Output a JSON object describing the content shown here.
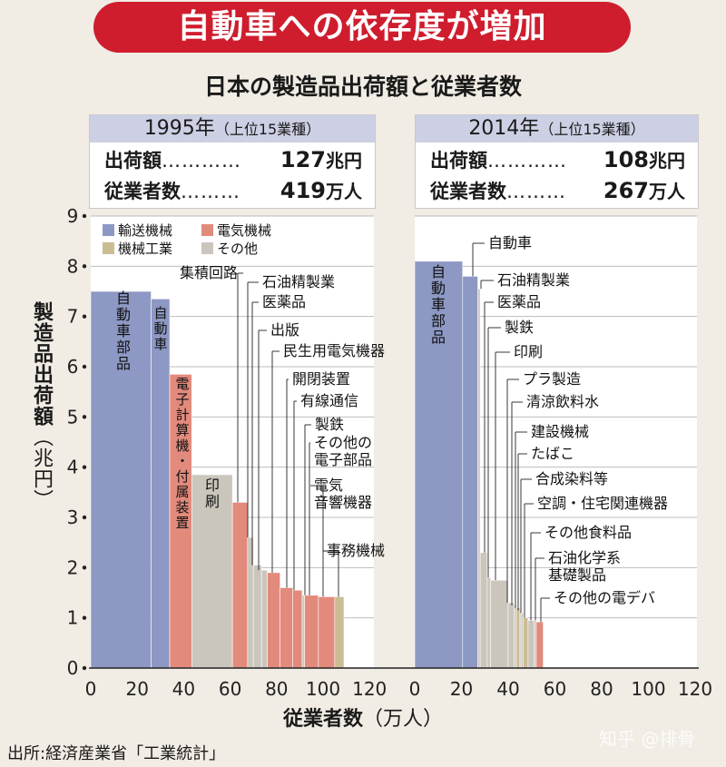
{
  "header": {
    "banner": "自動車への依存度が増加",
    "subtitle": "日本の製造品出荷額と従業者数"
  },
  "summary": [
    {
      "year": "1995年",
      "note": "（上位15業種）",
      "shipment_label": "出荷額",
      "shipment_value": "127",
      "shipment_unit": "兆円",
      "employee_label": "従業者数",
      "employee_value": "419",
      "employee_unit": "万人"
    },
    {
      "year": "2014年",
      "note": "（上位15業種）",
      "shipment_label": "出荷額",
      "shipment_value": "108",
      "shipment_unit": "兆円",
      "employee_label": "従業者数",
      "employee_value": "267",
      "employee_unit": "万人"
    }
  ],
  "axes": {
    "ylabel": "製造品出荷額",
    "ylabel_unit": "（兆円）",
    "xlabel": "従業者数",
    "xlabel_unit": "（万人）"
  },
  "footer": {
    "source": "出所:経済産業省「工業統計」",
    "watermark": "知乎 @排骨"
  },
  "chart_data": {
    "type": "bar",
    "subtype": "variable-width (Marimekko) bar, width = employees, height = shipments",
    "ylim": [
      0,
      9
    ],
    "xlim": [
      0,
      120
    ],
    "yticks": [
      0,
      1,
      2,
      3,
      4,
      5,
      6,
      7,
      8,
      9
    ],
    "xticks": [
      0,
      20,
      40,
      60,
      80,
      100,
      120
    ],
    "legend": [
      {
        "name": "輸送機械",
        "color": "#8d98c4"
      },
      {
        "name": "電気機械",
        "color": "#e28a7c"
      },
      {
        "name": "機械工業",
        "color": "#cbbc94"
      },
      {
        "name": "その他",
        "color": "#cbc6bc"
      }
    ],
    "panels": [
      {
        "year": "1995年",
        "bars": [
          {
            "label": "自動車部品",
            "category": "輸送機械",
            "x0": 0,
            "x1": 26,
            "value": 7.5
          },
          {
            "label": "自動車",
            "category": "輸送機械",
            "x0": 26,
            "x1": 34,
            "value": 7.35
          },
          {
            "label": "電子計算機・付属装置",
            "category": "電気機械",
            "x0": 34,
            "x1": 43.5,
            "value": 5.85
          },
          {
            "label": "印刷",
            "category": "その他",
            "x0": 43.5,
            "x1": 61,
            "value": 3.85
          },
          {
            "label": "集積回路",
            "category": "電気機械",
            "x0": 61,
            "x1": 67.5,
            "value": 3.3
          },
          {
            "label": "石油精製業",
            "category": "その他",
            "x0": 67.5,
            "x1": 70,
            "value": 2.6
          },
          {
            "label": "医薬品",
            "category": "その他",
            "x0": 70,
            "x1": 73.5,
            "value": 2.05
          },
          {
            "label": "出版",
            "category": "その他",
            "x0": 73.5,
            "x1": 76,
            "value": 1.95
          },
          {
            "label": "民生用電気機器",
            "category": "電気機械",
            "x0": 76,
            "x1": 81.5,
            "value": 1.9
          },
          {
            "label": "開閉装置",
            "category": "電気機械",
            "x0": 81.5,
            "x1": 87,
            "value": 1.6
          },
          {
            "label": "有線通信",
            "category": "電気機械",
            "x0": 87,
            "x1": 91,
            "value": 1.55
          },
          {
            "label": "製鉄",
            "category": "その他",
            "x0": 91,
            "x1": 92,
            "value": 1.45
          },
          {
            "label": "その他の電子部品",
            "category": "電気機械",
            "x0": 92,
            "x1": 98,
            "value": 1.45
          },
          {
            "label": "電気音響機器",
            "category": "電気機械",
            "x0": 98,
            "x1": 105,
            "value": 1.42
          },
          {
            "label": "事務機械",
            "category": "機械工業",
            "x0": 105,
            "x1": 109,
            "value": 1.42
          }
        ]
      },
      {
        "year": "2014年",
        "bars": [
          {
            "label": "自動車部品",
            "category": "輸送機械",
            "x0": 0,
            "x1": 20.5,
            "value": 8.1
          },
          {
            "label": "自動車",
            "category": "輸送機械",
            "x0": 20.5,
            "x1": 27,
            "value": 7.8
          },
          {
            "label": "石油精製業",
            "category": "その他",
            "x0": 27,
            "x1": 28,
            "value": 7.55
          },
          {
            "label": "医薬品",
            "category": "その他",
            "x0": 28,
            "x1": 31,
            "value": 2.3
          },
          {
            "label": "製鉄",
            "category": "その他",
            "x0": 31,
            "x1": 32.5,
            "value": 1.8
          },
          {
            "label": "印刷",
            "category": "その他",
            "x0": 32.5,
            "x1": 40,
            "value": 1.75
          },
          {
            "label": "プラ製造",
            "category": "その他",
            "x0": 40,
            "x1": 42.5,
            "value": 1.3
          },
          {
            "label": "清涼飲料水",
            "category": "その他",
            "x0": 42.5,
            "x1": 43.5,
            "value": 1.25
          },
          {
            "label": "建設機械",
            "category": "機械工業",
            "x0": 43.5,
            "x1": 45,
            "value": 1.2
          },
          {
            "label": "たばこ",
            "category": "その他",
            "x0": 45,
            "x1": 45.5,
            "value": 1.15
          },
          {
            "label": "合成染料等",
            "category": "その他",
            "x0": 45.5,
            "x1": 46.5,
            "value": 1.1
          },
          {
            "label": "空調・住宅関連機器",
            "category": "機械工業",
            "x0": 46.5,
            "x1": 48.5,
            "value": 1.0
          },
          {
            "label": "その他食料品",
            "category": "その他",
            "x0": 48.5,
            "x1": 51,
            "value": 0.95
          },
          {
            "label": "石油化学系基礎製品",
            "category": "その他",
            "x0": 51,
            "x1": 52,
            "value": 0.95
          },
          {
            "label": "その他の電デバ",
            "category": "電気機械",
            "x0": 52,
            "x1": 55,
            "value": 0.92
          }
        ]
      }
    ]
  }
}
